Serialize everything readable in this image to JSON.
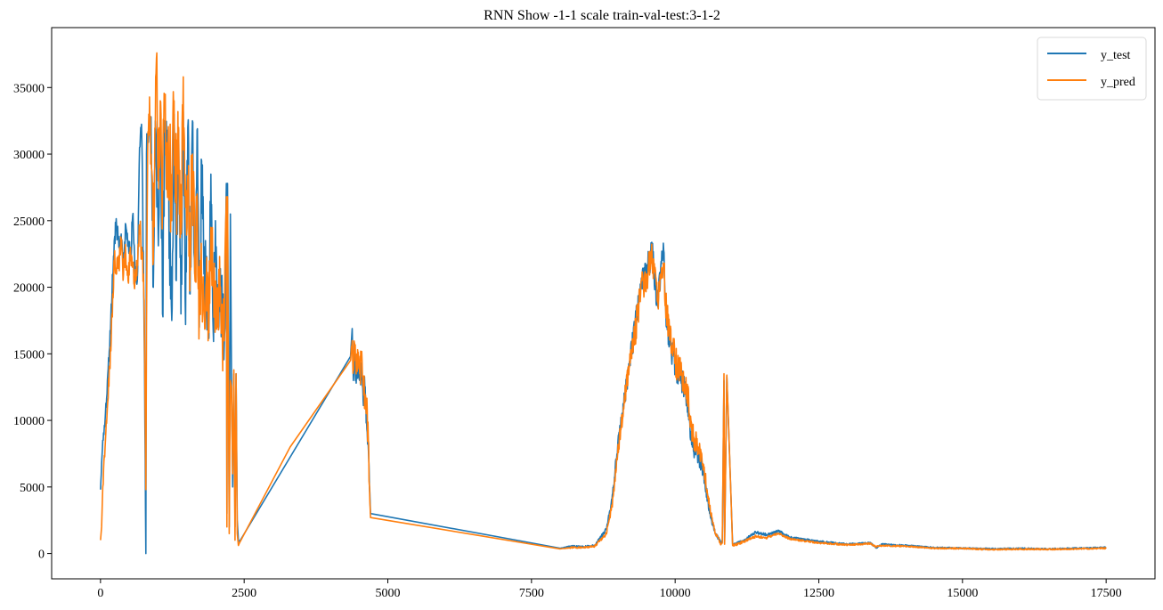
{
  "chart_data": {
    "type": "line",
    "title": "RNN Show -1-1 scale train-val-test:3-1-2",
    "xlabel": "",
    "ylabel": "",
    "xlim": [
      -850,
      18350
    ],
    "ylim": [
      -1900,
      39500
    ],
    "xticks": [
      0,
      2500,
      5000,
      7500,
      10000,
      12500,
      15000,
      17500
    ],
    "xtick_labels": [
      "0",
      "2500",
      "5000",
      "7500",
      "10000",
      "12500",
      "15000",
      "17500"
    ],
    "yticks": [
      0,
      5000,
      10000,
      15000,
      20000,
      25000,
      30000,
      35000
    ],
    "ytick_labels": [
      "0",
      "5000",
      "10000",
      "15000",
      "20000",
      "25000",
      "30000",
      "35000"
    ],
    "grid": false,
    "legend_position": "top-right",
    "series": [
      {
        "name": "y_test",
        "color": "#1f77b4",
        "x": [
          0,
          40,
          80,
          120,
          160,
          200,
          240,
          280,
          320,
          360,
          400,
          440,
          480,
          520,
          560,
          600,
          640,
          680,
          700,
          720,
          760,
          790,
          795,
          800,
          840,
          880,
          920,
          960,
          1000,
          1040,
          1080,
          1120,
          1160,
          1200,
          1240,
          1280,
          1320,
          1360,
          1400,
          1440,
          1480,
          1520,
          1560,
          1600,
          1640,
          1680,
          1720,
          1760,
          1800,
          1840,
          1880,
          1920,
          1960,
          2000,
          2040,
          2080,
          2120,
          2160,
          2190,
          2200,
          2210,
          2240,
          2260,
          2280,
          2300,
          2320,
          2340,
          2360,
          2380,
          2400,
          2420,
          4350,
          4380,
          4400,
          4420,
          4450,
          4480,
          4510,
          4540,
          4570,
          4600,
          4630,
          4660,
          4680,
          4700,
          8000,
          8200,
          8400,
          8600,
          8800,
          8900,
          9000,
          9100,
          9200,
          9300,
          9400,
          9500,
          9600,
          9700,
          9750,
          9800,
          9850,
          9900,
          10000,
          10100,
          10200,
          10300,
          10400,
          10500,
          10600,
          10700,
          10800,
          10820,
          10850,
          10860,
          10900,
          11000,
          11200,
          11400,
          11600,
          11800,
          12000,
          12500,
          13000,
          13400,
          13500,
          13600,
          14000,
          14500,
          15000,
          15500,
          16000,
          16500,
          17000,
          17500
        ],
        "values": [
          4800,
          8500,
          10000,
          13000,
          15500,
          19500,
          23500,
          24600,
          23000,
          24000,
          21500,
          24700,
          23500,
          22000,
          25400,
          21000,
          20500,
          30500,
          32000,
          31000,
          16500,
          0,
          16800,
          30000,
          31500,
          32800,
          20000,
          32000,
          25000,
          31000,
          18000,
          32500,
          30000,
          24000,
          17500,
          33000,
          20500,
          31800,
          18000,
          33200,
          17200,
          32000,
          19500,
          32500,
          21000,
          31800,
          17000,
          29500,
          21000,
          20500,
          16500,
          28500,
          17000,
          25000,
          18000,
          21000,
          17500,
          16500,
          27800,
          3000,
          27800,
          2000,
          25500,
          13000,
          5000,
          13500,
          2000,
          13500,
          2500,
          1000,
          900,
          14800,
          16900,
          13000,
          15500,
          12800,
          14500,
          13000,
          14000,
          11500,
          12500,
          10000,
          8000,
          5000,
          3000,
          400,
          550,
          500,
          600,
          1800,
          4000,
          8000,
          11000,
          14000,
          17000,
          20000,
          21500,
          22500,
          18500,
          21500,
          22800,
          17000,
          16000,
          14000,
          13000,
          12000,
          8000,
          7500,
          6000,
          3000,
          1500,
          800,
          900,
          13000,
          800,
          13300,
          700,
          1000,
          1600,
          1400,
          1700,
          1200,
          900,
          700,
          800,
          400,
          700,
          600,
          450,
          400,
          350,
          380,
          350,
          400,
          450
        ],
        "_noise_amp": [
          0,
          400,
          500,
          600,
          700,
          800,
          900,
          1000,
          1000,
          1000,
          1000,
          1000,
          1000,
          1000,
          1000,
          1000,
          1000,
          1200,
          1500,
          1500,
          1500,
          0,
          1500,
          1500,
          1500,
          1500,
          3000,
          3000,
          3000,
          3000,
          3000,
          3000,
          3000,
          3000,
          3000,
          3000,
          3000,
          3000,
          3000,
          3000,
          3000,
          3000,
          3000,
          3000,
          3000,
          3000,
          3000,
          3000,
          3000,
          3000,
          3000,
          3000,
          3000,
          3000,
          3000,
          3000,
          3000,
          3000,
          0,
          0,
          0,
          0,
          0,
          0,
          0,
          0,
          0,
          0,
          0,
          0,
          0,
          0,
          0,
          1000,
          1000,
          1000,
          1000,
          1000,
          1000,
          1000,
          1000,
          1000,
          1000,
          600,
          0,
          0,
          60,
          60,
          80,
          150,
          300,
          500,
          700,
          900,
          1000,
          1100,
          1100,
          1100,
          1100,
          1000,
          1000,
          1000,
          1000,
          1000,
          1000,
          1000,
          800,
          800,
          600,
          300,
          150,
          100,
          100,
          0,
          0,
          0,
          0,
          100,
          100,
          100,
          100,
          80,
          80,
          60,
          60,
          60,
          60,
          60,
          50,
          50,
          50,
          50,
          50,
          50,
          50,
          50,
          50
        ]
      },
      {
        "name": "y_pred",
        "color": "#ff7f0e",
        "x": [
          0,
          20,
          40,
          80,
          120,
          160,
          200,
          240,
          280,
          320,
          360,
          400,
          440,
          480,
          520,
          560,
          600,
          640,
          680,
          720,
          760,
          790,
          800,
          820,
          840,
          880,
          920,
          960,
          980,
          1000,
          1040,
          1080,
          1120,
          1160,
          1200,
          1240,
          1280,
          1320,
          1360,
          1400,
          1440,
          1480,
          1520,
          1560,
          1600,
          1640,
          1680,
          1720,
          1760,
          1800,
          1840,
          1880,
          1920,
          1960,
          2000,
          2040,
          2080,
          2120,
          2160,
          2190,
          2200,
          2210,
          2240,
          2260,
          2280,
          2300,
          2320,
          2340,
          2360,
          2380,
          2400,
          2420,
          3300,
          4350,
          4380,
          4400,
          4420,
          4450,
          4480,
          4510,
          4540,
          4570,
          4600,
          4630,
          4660,
          4680,
          4700,
          8000,
          8200,
          8400,
          8600,
          8800,
          8900,
          9000,
          9100,
          9200,
          9300,
          9400,
          9500,
          9600,
          9700,
          9750,
          9800,
          9850,
          9900,
          10000,
          10100,
          10200,
          10300,
          10400,
          10500,
          10600,
          10700,
          10800,
          10820,
          10850,
          10860,
          10900,
          11000,
          11200,
          11400,
          11600,
          11800,
          12000,
          12500,
          13000,
          13400,
          13500,
          13600,
          14000,
          14500,
          15000,
          15500,
          16000,
          16500,
          17000,
          17500
        ],
        "values": [
          1000,
          2000,
          5000,
          8000,
          11000,
          14000,
          18000,
          22000,
          21000,
          22000,
          23000,
          21000,
          22500,
          20500,
          23000,
          21500,
          20500,
          22000,
          24000,
          23000,
          19000,
          4800,
          17000,
          30000,
          33000,
          30000,
          22000,
          35800,
          37600,
          28000,
          34000,
          27000,
          33500,
          28000,
          30000,
          25000,
          34000,
          27000,
          32000,
          24000,
          35800,
          26000,
          28000,
          22000,
          30000,
          21000,
          27000,
          18000,
          20000,
          19000,
          20500,
          18000,
          24500,
          20000,
          18500,
          17000,
          20000,
          16000,
          19000,
          26800,
          2000,
          26800,
          1500,
          13000,
          12500,
          6000,
          13800,
          1000,
          13500,
          1500,
          600,
          800,
          8000,
          14500,
          16000,
          14000,
          15800,
          13500,
          15000,
          13500,
          14500,
          12500,
          12000,
          11000,
          8500,
          5000,
          2700,
          350,
          450,
          450,
          550,
          1500,
          3500,
          7500,
          11000,
          14000,
          16500,
          19500,
          21000,
          22000,
          19000,
          21000,
          21500,
          18000,
          17000,
          14500,
          13500,
          12500,
          9000,
          8000,
          6500,
          3500,
          1500,
          700,
          800,
          13500,
          700,
          13400,
          600,
          900,
          1300,
          1200,
          1500,
          1100,
          800,
          650,
          750,
          500,
          600,
          550,
          400,
          380,
          300,
          330,
          320,
          350,
          400
        ],
        "_noise_amp": [
          0,
          0,
          500,
          600,
          700,
          800,
          900,
          1000,
          1000,
          1000,
          1000,
          1000,
          1000,
          1000,
          1000,
          1000,
          1000,
          1000,
          1200,
          1500,
          1500,
          0,
          1500,
          1500,
          2500,
          2500,
          4000,
          4000,
          0,
          4000,
          4000,
          4000,
          4000,
          4000,
          4000,
          4000,
          4000,
          4000,
          4000,
          4000,
          4000,
          4000,
          4000,
          4000,
          4000,
          4000,
          4000,
          4000,
          4000,
          3000,
          3000,
          3000,
          3000,
          3000,
          3000,
          3000,
          3000,
          3000,
          3000,
          0,
          0,
          0,
          0,
          0,
          0,
          0,
          0,
          0,
          0,
          0,
          0,
          0,
          0,
          0,
          1200,
          1200,
          1200,
          1200,
          1200,
          1200,
          1200,
          1200,
          1200,
          1200,
          1200,
          600,
          0,
          0,
          60,
          60,
          80,
          150,
          300,
          500,
          700,
          900,
          1200,
          1300,
          1300,
          1300,
          1300,
          1200,
          1200,
          1200,
          1200,
          1200,
          1200,
          1000,
          1000,
          800,
          600,
          300,
          150,
          100,
          0,
          0,
          0,
          0,
          100,
          100,
          100,
          100,
          80,
          80,
          60,
          60,
          60,
          60,
          60,
          50,
          50,
          50,
          50,
          50,
          50,
          50,
          50,
          50
        ]
      }
    ]
  }
}
